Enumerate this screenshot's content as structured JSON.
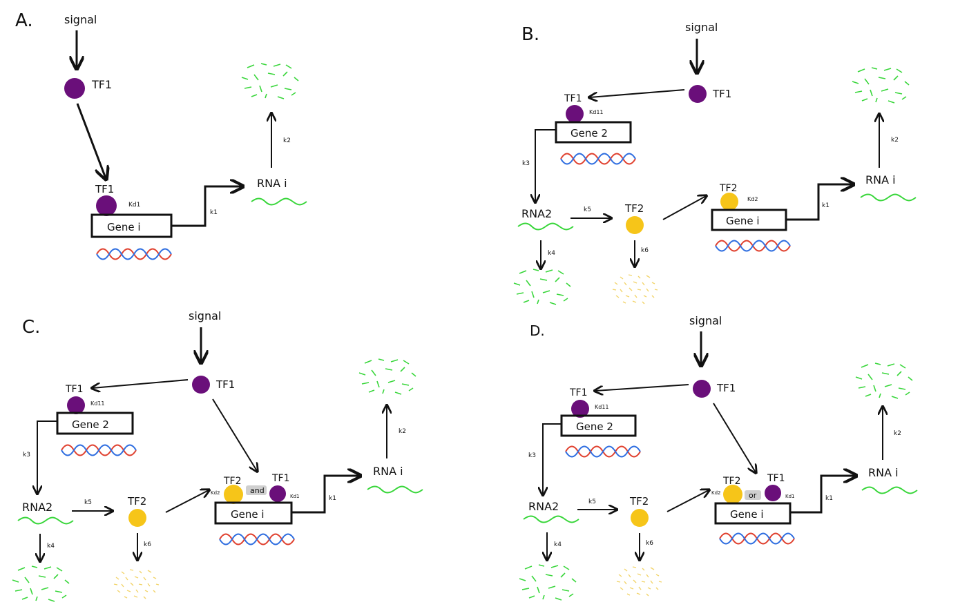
{
  "panels": {
    "a": {
      "letter": "A.",
      "signal": "signal",
      "tf1": "TF1",
      "tf1_bound": "TF1",
      "kd1": "Kd1",
      "gene": "Gene i",
      "k1": "k1",
      "rna": "RNA i",
      "k2": "k2"
    },
    "b": {
      "letter": "B.",
      "signal": "signal",
      "tf1": "TF1",
      "tf1_bound": "TF1",
      "kd11": "Kd11",
      "gene2": "Gene 2",
      "k3": "k3",
      "rna2": "RNA2",
      "k4": "k4",
      "k5": "k5",
      "tf2": "TF2",
      "k6": "k6",
      "tf2_bound": "TF2",
      "kd2": "Kd2",
      "gene": "Gene i",
      "k1": "k1",
      "rna": "RNA i",
      "k2": "k2"
    },
    "c": {
      "letter": "C.",
      "signal": "signal",
      "tf1": "TF1",
      "tf1_bound": "TF1",
      "kd11": "Kd11",
      "gene2": "Gene 2",
      "k3": "k3",
      "rna2": "RNA2",
      "k4": "k4",
      "k5": "k5",
      "tf2": "TF2",
      "k6": "k6",
      "tf2_bound": "TF2",
      "logic": "and",
      "tf1_gene": "TF1",
      "kd2": "Kd2",
      "kd1": "Kd1",
      "gene": "Gene i",
      "k1": "k1",
      "rna": "RNA i",
      "k2": "k2"
    },
    "d": {
      "letter": "D.",
      "signal": "signal",
      "tf1": "TF1",
      "tf1_bound": "TF1",
      "kd11": "Kd11",
      "gene2": "Gene 2",
      "k3": "k3",
      "rna2": "RNA2",
      "k4": "k4",
      "k5": "k5",
      "tf2": "TF2",
      "k6": "k6",
      "tf2_bound": "TF2",
      "logic": "or",
      "tf1_gene": "TF1",
      "kd2": "Kd2",
      "kd1": "Kd1",
      "gene": "Gene i",
      "k1": "k1",
      "rna": "RNA i",
      "k2": "k2"
    }
  },
  "colors": {
    "tf1": "#6a0f7a",
    "tf2": "#f6c519",
    "rna": "#38d63a",
    "dna_red": "#e0412f",
    "dna_blue": "#2f6ee0",
    "degraded_protein": "#f2d46a"
  }
}
